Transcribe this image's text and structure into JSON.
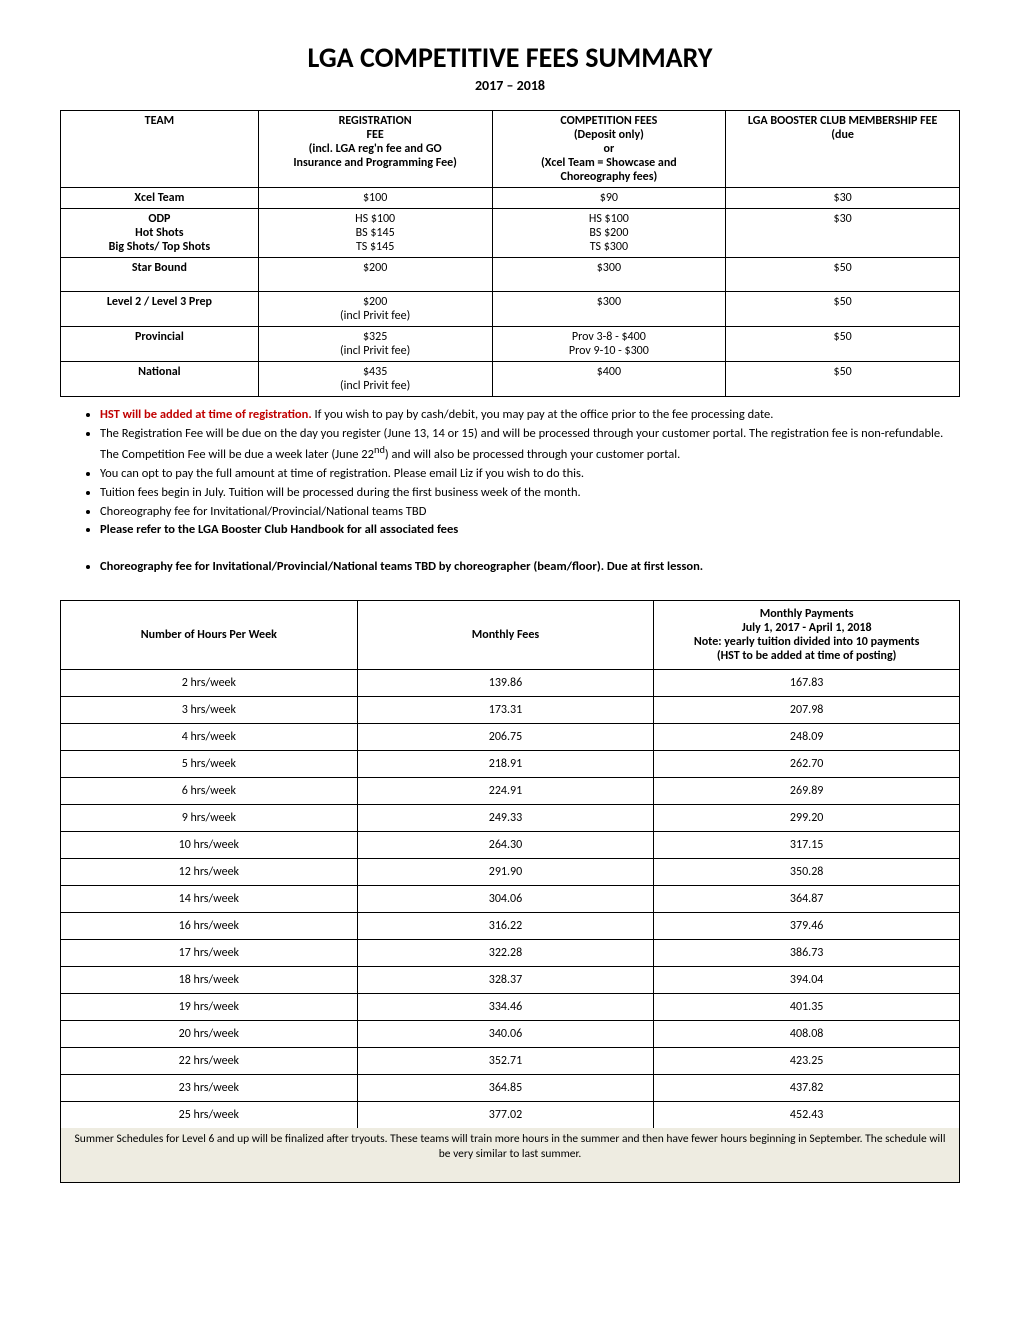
{
  "title": "LGA COMPETITIVE FEES SUMMARY",
  "subtitle": "2017 – 2018",
  "feesTable": {
    "headers": {
      "team": "TEAM",
      "reg": "REGISTRATION\nFEE\n(incl. LGA reg'n fee and GO\nInsurance and Programming Fee)",
      "comp": "COMPETITION FEES\n(Deposit only)\nor\n(Xcel Team = Showcase and\nChoreography fees)",
      "booster": "LGA BOOSTER CLUB MEMBERSHIP FEE\n(due"
    },
    "rows": [
      {
        "team": "Xcel Team",
        "reg": "$100",
        "comp": "$90",
        "booster": "$30"
      },
      {
        "team": "ODP\nHot Shots\nBig Shots/ Top Shots",
        "reg": "HS  $100\nBS  $145\nTS  $145",
        "comp": "HS  $100\nBS  $200\nTS   $300",
        "booster": "$30"
      },
      {
        "team": "Star Bound",
        "reg": "$200",
        "comp": "$300",
        "booster": "$50",
        "tall": true
      },
      {
        "team": "Level 2 / Level 3 Prep",
        "reg": "$200\n(incl Privit fee)",
        "comp": "$300",
        "booster": "$50"
      },
      {
        "team": "Provincial",
        "reg": "$325\n(incl Privit fee)",
        "comp": "Prov 3-8 - $400\nProv 9-10 - $300",
        "booster": "$50"
      },
      {
        "team": "National",
        "reg": "$435\n(incl Privit fee)",
        "comp": "$400",
        "booster": "$50"
      }
    ]
  },
  "notes": [
    {
      "html": "<span class='red'>HST will be added at time of registration.</span>   If you wish to pay by cash/debit, you may pay at the office prior to the fee processing date."
    },
    {
      "html": "The Registration Fee will be due on the day you register (June 13, 14 or 15) and will be processed through your customer portal.  The registration fee is non-refundable.   The Competition Fee will be due a week later (June 22<sup>nd</sup>) and will also be processed through your customer portal."
    },
    {
      "html": "You can opt to pay the full amount at time of registration.  Please email Liz if you wish to do this."
    },
    {
      "html": "Tuition fees begin in July.  Tuition will be processed during the first business week of the month."
    },
    {
      "html": "Choreography fee for Invitational/Provincial/National teams TBD"
    },
    {
      "html": "<span class='bold'>Please refer to the LGA Booster Club Handbook for all associated fees</span>"
    }
  ],
  "notes2": [
    {
      "html": "<span class='bold'>Choreography fee for Invitational/Provincial/National teams TBD by choreographer (beam/floor).  Due at first lesson.</span>"
    }
  ],
  "monthlyTable": {
    "headers": {
      "hours": "Number of Hours Per Week",
      "monthly": "Monthly Fees",
      "payments": "Monthly Payments\nJuly 1, 2017 - April 1, 2018\nNote:  yearly tuition divided into 10 payments\n(HST to be added at time of posting)"
    },
    "rows": [
      {
        "hours": "2 hrs/week",
        "monthly": "139.86",
        "payments": "167.83"
      },
      {
        "hours": "3 hrs/week",
        "monthly": "173.31",
        "payments": "207.98"
      },
      {
        "hours": "4 hrs/week",
        "monthly": "206.75",
        "payments": "248.09"
      },
      {
        "hours": "5 hrs/week",
        "monthly": "218.91",
        "payments": "262.70"
      },
      {
        "hours": "6 hrs/week",
        "monthly": "224.91",
        "payments": "269.89"
      },
      {
        "hours": "9 hrs/week",
        "monthly": "249.33",
        "payments": "299.20"
      },
      {
        "hours": "10 hrs/week",
        "monthly": "264.30",
        "payments": "317.15"
      },
      {
        "hours": "12 hrs/week",
        "monthly": "291.90",
        "payments": "350.28"
      },
      {
        "hours": "14 hrs/week",
        "monthly": "304.06",
        "payments": "364.87"
      },
      {
        "hours": "16 hrs/week",
        "monthly": "316.22",
        "payments": "379.46"
      },
      {
        "hours": "17 hrs/week",
        "monthly": "322.28",
        "payments": "386.73"
      },
      {
        "hours": "18 hrs/week",
        "monthly": "328.37",
        "payments": "394.04"
      },
      {
        "hours": "19 hrs/week",
        "monthly": "334.46",
        "payments": "401.35"
      },
      {
        "hours": "20 hrs/week",
        "monthly": "340.06",
        "payments": "408.08"
      },
      {
        "hours": "22 hrs/week",
        "monthly": "352.71",
        "payments": "423.25"
      },
      {
        "hours": "23 hrs/week",
        "monthly": "364.85",
        "payments": "437.82"
      },
      {
        "hours": "25 hrs/week",
        "monthly": "377.02",
        "payments": "452.43"
      }
    ]
  },
  "footerNote": "Summer Schedules for Level 6 and up will be finalized after tryouts.  These teams will train more hours in the summer and then have fewer hours beginning in September. The schedule will be very similar to last summer."
}
